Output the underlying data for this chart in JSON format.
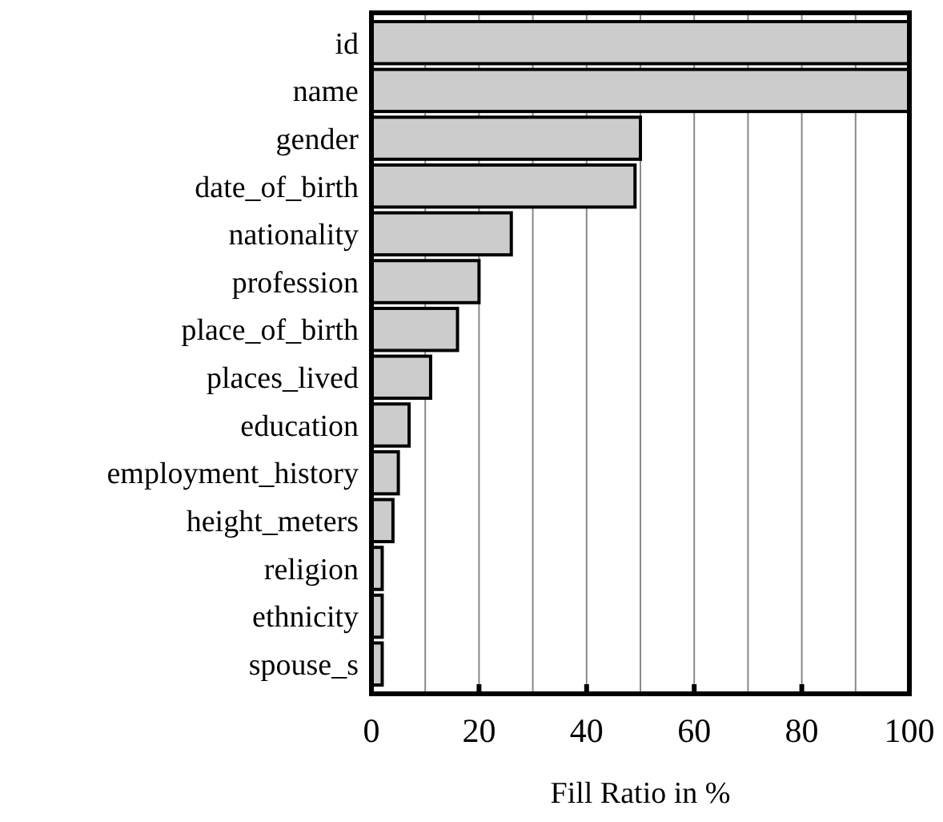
{
  "chart_data": {
    "type": "bar",
    "orientation": "horizontal",
    "xlabel": "Fill Ratio in %",
    "categories": [
      "id",
      "name",
      "gender",
      "date_of_birth",
      "nationality",
      "profession",
      "place_of_birth",
      "places_lived",
      "education",
      "employment_history",
      "height_meters",
      "religion",
      "ethnicity",
      "spouse_s"
    ],
    "values": [
      100,
      100,
      50,
      49,
      26,
      20,
      16,
      11,
      7,
      5,
      4,
      2,
      2,
      2
    ],
    "color": "#cccccc",
    "xlim": [
      0,
      100
    ],
    "xticks": [
      0,
      {
        "value": 10,
        "label": null
      },
      20,
      {
        "value": 30,
        "label": null
      },
      40,
      {
        "value": 50,
        "label": null
      },
      60,
      {
        "value": 70,
        "label": null
      },
      80,
      {
        "value": 90,
        "label": null
      },
      100
    ],
    "grid": "x"
  }
}
